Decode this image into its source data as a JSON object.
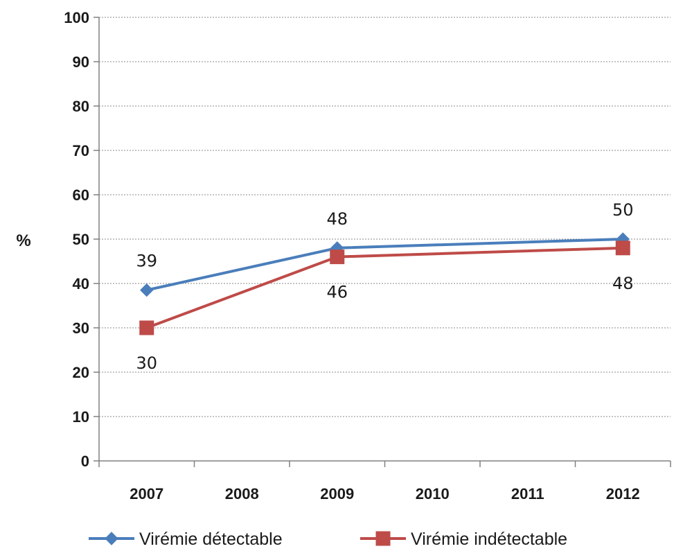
{
  "chart_data": {
    "type": "line",
    "title": "",
    "xlabel": "",
    "ylabel": "%",
    "ylim": [
      0,
      100
    ],
    "y_ticks": [
      0,
      10,
      20,
      30,
      40,
      50,
      60,
      70,
      80,
      90,
      100
    ],
    "categories": [
      "2007",
      "2008",
      "2009",
      "2010",
      "2011",
      "2012"
    ],
    "grid": "horizontal dotted",
    "legend_position": "bottom",
    "series": [
      {
        "name": "Virémie détectable",
        "color": "#4a7ebb",
        "marker": "diamond",
        "points": [
          {
            "x": "2007",
            "y": 38.5,
            "label": "39",
            "label_pos": "above"
          },
          {
            "x": "2009",
            "y": 48,
            "label": "48",
            "label_pos": "above"
          },
          {
            "x": "2012",
            "y": 50,
            "label": "50",
            "label_pos": "above"
          }
        ]
      },
      {
        "name": "Virémie indétectable",
        "color": "#be4b48",
        "marker": "square",
        "points": [
          {
            "x": "2007",
            "y": 30,
            "label": "30",
            "label_pos": "below"
          },
          {
            "x": "2009",
            "y": 46,
            "label": "46",
            "label_pos": "below"
          },
          {
            "x": "2012",
            "y": 48,
            "label": "48",
            "label_pos": "below"
          }
        ]
      }
    ]
  }
}
